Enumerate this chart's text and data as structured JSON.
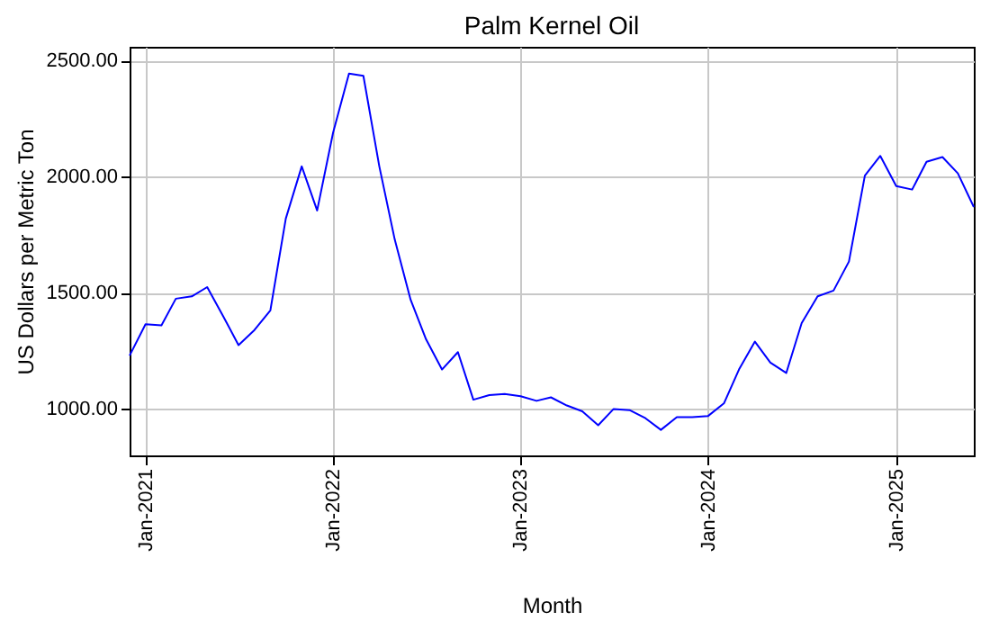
{
  "chart_data": {
    "type": "line",
    "title": "Palm Kernel Oil",
    "xlabel": "Month",
    "ylabel": "US Dollars per Metric Ton",
    "x": [
      "2020-12",
      "2021-01",
      "2021-02",
      "2021-03",
      "2021-04",
      "2021-05",
      "2021-06",
      "2021-07",
      "2021-08",
      "2021-09",
      "2021-10",
      "2021-11",
      "2021-12",
      "2022-01",
      "2022-02",
      "2022-03",
      "2022-04",
      "2022-05",
      "2022-06",
      "2022-07",
      "2022-08",
      "2022-09",
      "2022-10",
      "2022-11",
      "2022-12",
      "2023-01",
      "2023-02",
      "2023-03",
      "2023-04",
      "2023-05",
      "2023-06",
      "2023-07",
      "2023-08",
      "2023-09",
      "2023-10",
      "2023-11",
      "2023-12",
      "2024-01",
      "2024-02",
      "2024-03",
      "2024-04",
      "2024-05",
      "2024-06",
      "2024-07",
      "2024-08",
      "2024-09",
      "2024-10",
      "2024-11",
      "2024-12",
      "2025-01",
      "2025-02",
      "2025-03",
      "2025-04",
      "2025-05",
      "2025-06"
    ],
    "series": [
      {
        "color": "#0000ff",
        "values": [
          1230,
          1365,
          1360,
          1475,
          1485,
          1525,
          1400,
          1275,
          1340,
          1425,
          1820,
          2045,
          1855,
          2190,
          2445,
          2435,
          2045,
          1730,
          1470,
          1300,
          1170,
          1245,
          1040,
          1060,
          1065,
          1055,
          1035,
          1050,
          1015,
          990,
          930,
          1000,
          995,
          960,
          910,
          965,
          965,
          970,
          1025,
          1170,
          1290,
          1200,
          1155,
          1370,
          1485,
          1510,
          1635,
          2005,
          2090,
          1960,
          1945,
          2065,
          2085,
          2015,
          1870
        ]
      }
    ],
    "xlim": [
      "2020-12",
      "2025-06"
    ],
    "xticks": [
      {
        "value": "2021-01",
        "label": "Jan-2021"
      },
      {
        "value": "2022-01",
        "label": "Jan-2022"
      },
      {
        "value": "2023-01",
        "label": "Jan-2023"
      },
      {
        "value": "2024-01",
        "label": "Jan-2024"
      },
      {
        "value": "2025-01",
        "label": "Jan-2025"
      }
    ],
    "ylim": [
      800,
      2560
    ],
    "yticks": [
      {
        "value": 1000,
        "label": "1000.00"
      },
      {
        "value": 1500,
        "label": "1500.00"
      },
      {
        "value": 2000,
        "label": "2000.00"
      },
      {
        "value": 2500,
        "label": "2500.00"
      }
    ],
    "grid": true,
    "marker": "none",
    "line_style": "solid",
    "legend": false
  }
}
